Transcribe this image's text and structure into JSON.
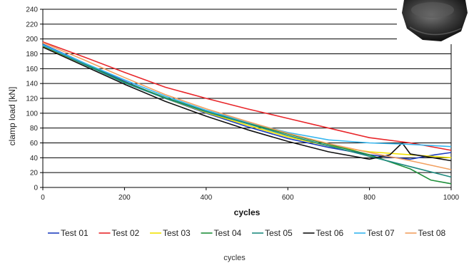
{
  "caption": "cycles",
  "chart_data": {
    "type": "line",
    "xlabel": "cycles",
    "ylabel": "clamp load [kN]",
    "xlim": [
      0,
      1000
    ],
    "ylim": [
      0,
      240
    ],
    "xticks": [
      0,
      200,
      400,
      600,
      800,
      1000
    ],
    "yticks": [
      0,
      20,
      40,
      60,
      80,
      100,
      120,
      140,
      160,
      180,
      200,
      220,
      240
    ],
    "grid": "horizontal",
    "legend_position": "bottom",
    "series": [
      {
        "name": "Test 01",
        "color": "#1f3fbf",
        "x": [
          0,
          100,
          200,
          300,
          400,
          500,
          600,
          700,
          800,
          900,
          960,
          1000
        ],
        "y": [
          193,
          168,
          143,
          120,
          100,
          82,
          66,
          54,
          44,
          38,
          44,
          47
        ]
      },
      {
        "name": "Test 02",
        "color": "#e8262a",
        "x": [
          0,
          100,
          200,
          300,
          400,
          500,
          600,
          700,
          800,
          900,
          1000
        ],
        "y": [
          196,
          176,
          155,
          135,
          120,
          106,
          93,
          80,
          67,
          60,
          50
        ]
      },
      {
        "name": "Test 03",
        "color": "#f2e200",
        "x": [
          0,
          100,
          200,
          300,
          400,
          500,
          600,
          700,
          800,
          900,
          1000
        ],
        "y": [
          190,
          166,
          142,
          120,
          101,
          84,
          68,
          56,
          48,
          44,
          40
        ]
      },
      {
        "name": "Test 04",
        "color": "#1f8f3a",
        "x": [
          0,
          100,
          200,
          300,
          400,
          500,
          600,
          700,
          800,
          900,
          950,
          1000
        ],
        "y": [
          192,
          167,
          142,
          121,
          103,
          87,
          72,
          58,
          44,
          25,
          10,
          5
        ]
      },
      {
        "name": "Test 05",
        "color": "#1e8a7f",
        "x": [
          0,
          100,
          200,
          300,
          400,
          500,
          600,
          700,
          800,
          900,
          1000
        ],
        "y": [
          191,
          166,
          141,
          120,
          102,
          86,
          70,
          56,
          42,
          28,
          14
        ]
      },
      {
        "name": "Test 06",
        "color": "#111111",
        "x": [
          0,
          100,
          200,
          300,
          400,
          500,
          600,
          700,
          800,
          850,
          880,
          900,
          1000
        ],
        "y": [
          189,
          164,
          139,
          116,
          96,
          78,
          62,
          48,
          38,
          44,
          60,
          45,
          36
        ]
      },
      {
        "name": "Test 07",
        "color": "#36b6ef",
        "x": [
          0,
          100,
          200,
          300,
          400,
          500,
          600,
          700,
          800,
          900,
          1000
        ],
        "y": [
          192,
          168,
          145,
          123,
          104,
          88,
          74,
          64,
          60,
          58,
          55
        ]
      },
      {
        "name": "Test 08",
        "color": "#f2a060",
        "x": [
          0,
          100,
          200,
          300,
          400,
          500,
          600,
          700,
          800,
          900,
          1000
        ],
        "y": [
          195,
          172,
          148,
          125,
          106,
          89,
          73,
          59,
          47,
          36,
          24
        ]
      }
    ]
  }
}
